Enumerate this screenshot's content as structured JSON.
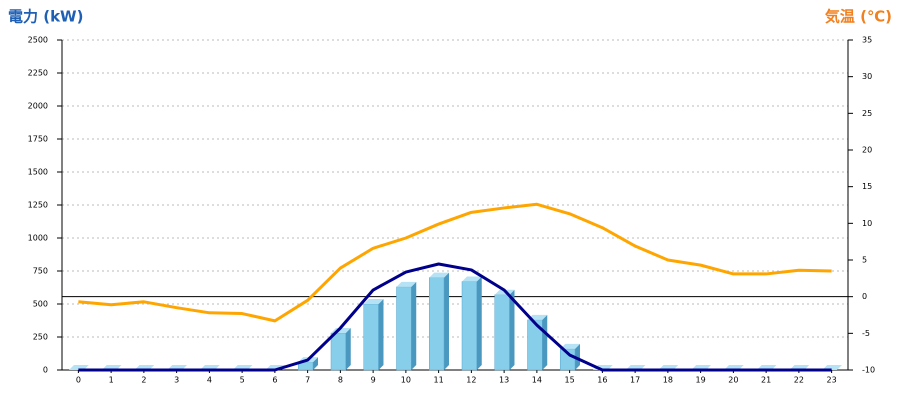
{
  "chart_data": {
    "type": "bar",
    "title": "電力 (kW)",
    "y2_title": "気温 (℃)",
    "categories": [
      "0",
      "1",
      "2",
      "3",
      "4",
      "5",
      "6",
      "7",
      "8",
      "9",
      "10",
      "11",
      "12",
      "13",
      "14",
      "15",
      "16",
      "17",
      "18",
      "19",
      "20",
      "21",
      "22",
      "23"
    ],
    "series": [
      {
        "type": "bar",
        "color": "#87ceeb",
        "values": [
          0,
          0,
          0,
          0,
          0,
          0,
          0,
          60,
          280,
          500,
          630,
          700,
          670,
          570,
          380,
          160,
          0,
          0,
          0,
          0,
          0,
          0,
          0,
          0
        ]
      },
      {
        "type": "line",
        "color": "#00008b",
        "values": [
          0,
          0,
          0,
          0,
          0,
          0,
          0,
          75,
          318,
          606,
          742,
          803,
          758,
          606,
          340,
          114,
          0,
          0,
          0,
          0,
          0,
          0,
          0,
          0
        ]
      },
      {
        "type": "line",
        "color": "#ffa500",
        "axis": "y2",
        "values": [
          -0.7,
          -1.1,
          -0.7,
          -1.5,
          -2.2,
          -2.3,
          -3.3,
          -0.5,
          3.9,
          6.6,
          8.0,
          9.9,
          11.5,
          12.1,
          12.6,
          11.3,
          9.4,
          6.9,
          5.0,
          4.3,
          3.1,
          3.1,
          3.6,
          3.5
        ]
      }
    ],
    "ylim": [
      0,
      2500
    ],
    "yticks": [
      0,
      250,
      500,
      750,
      1000,
      1250,
      1500,
      1750,
      2000,
      2250,
      2500
    ],
    "y2lim": [
      -10,
      35
    ],
    "y2ticks": [
      -10,
      -5,
      0,
      5,
      10,
      15,
      20,
      25,
      30,
      35
    ],
    "y2_reference_line": 0,
    "grid": true
  }
}
